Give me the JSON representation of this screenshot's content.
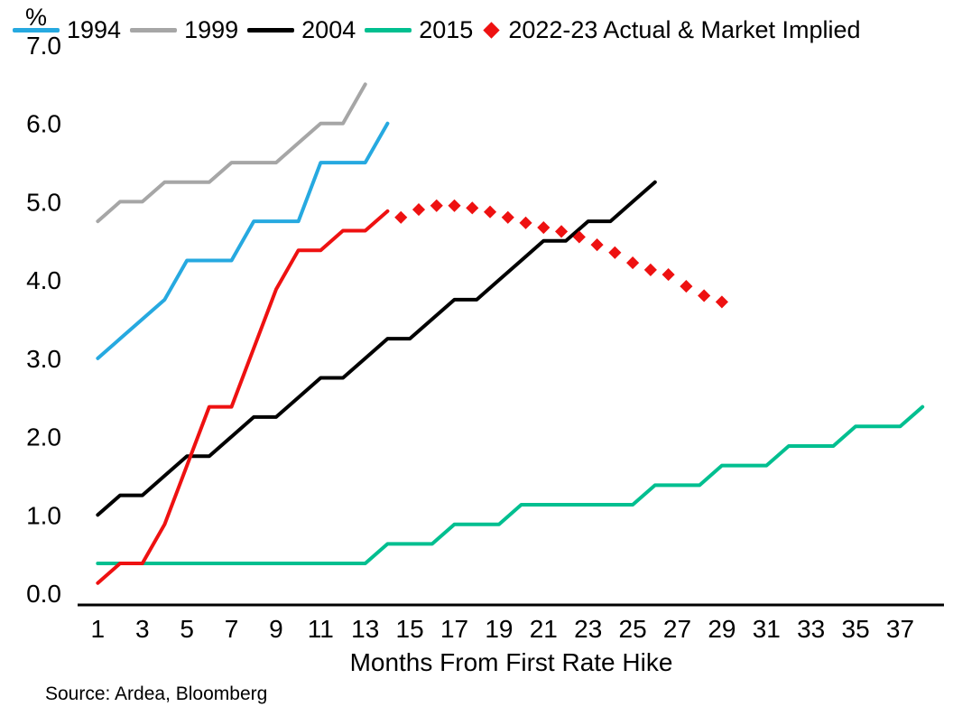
{
  "legend": {
    "items": [
      {
        "label": "1994",
        "color": "#26a9e0",
        "marker": "line"
      },
      {
        "label": "1999",
        "color": "#a6a6a6",
        "marker": "line"
      },
      {
        "label": "2004",
        "color": "#000000",
        "marker": "line"
      },
      {
        "label": "2015",
        "color": "#00bf90",
        "marker": "line"
      },
      {
        "label": "2022-23 Actual & Market Implied",
        "color": "#ee1111",
        "marker": "diamond"
      }
    ]
  },
  "chart_data": {
    "type": "line",
    "title": "",
    "xlabel": "Months From First Rate Hike",
    "ylabel": "%",
    "xlim": [
      0.5,
      38.6
    ],
    "ylim": [
      0,
      7
    ],
    "grid": false,
    "legend_position": "top",
    "xticks": [
      1,
      3,
      5,
      7,
      9,
      11,
      13,
      15,
      17,
      19,
      21,
      23,
      25,
      27,
      29,
      31,
      33,
      35,
      37
    ],
    "yticks": [
      "0.0",
      "1.0",
      "2.0",
      "3.0",
      "4.0",
      "5.0",
      "6.0",
      "7.0"
    ],
    "series": [
      {
        "name": "1994",
        "color": "#26a9e0",
        "style": "line",
        "x_start": 1,
        "y": [
          3.0,
          3.25,
          3.5,
          3.75,
          4.25,
          4.25,
          4.25,
          4.75,
          4.75,
          4.75,
          5.5,
          5.5,
          5.5,
          6.0
        ]
      },
      {
        "name": "1999",
        "color": "#a6a6a6",
        "style": "line",
        "x_start": 1,
        "y": [
          4.75,
          5.0,
          5.0,
          5.25,
          5.25,
          5.25,
          5.5,
          5.5,
          5.5,
          5.75,
          6.0,
          6.0,
          6.5
        ]
      },
      {
        "name": "2004",
        "color": "#000000",
        "style": "line",
        "x_start": 1,
        "y": [
          1.0,
          1.25,
          1.25,
          1.5,
          1.75,
          1.75,
          2.0,
          2.25,
          2.25,
          2.5,
          2.75,
          2.75,
          3.0,
          3.25,
          3.25,
          3.5,
          3.75,
          3.75,
          4.0,
          4.25,
          4.5,
          4.5,
          4.75,
          4.75,
          5.0,
          5.25
        ]
      },
      {
        "name": "2015",
        "color": "#00bf90",
        "style": "line",
        "x_start": 1,
        "y": [
          0.38,
          0.38,
          0.38,
          0.38,
          0.38,
          0.38,
          0.38,
          0.38,
          0.38,
          0.38,
          0.38,
          0.38,
          0.38,
          0.63,
          0.63,
          0.63,
          0.88,
          0.88,
          0.88,
          1.13,
          1.13,
          1.13,
          1.13,
          1.13,
          1.13,
          1.38,
          1.38,
          1.38,
          1.63,
          1.63,
          1.63,
          1.88,
          1.88,
          1.88,
          2.13,
          2.13,
          2.13,
          2.38
        ]
      },
      {
        "name": "2022-23 Actual",
        "color": "#ee1111",
        "style": "line",
        "x_start": 1,
        "y": [
          0.13,
          0.38,
          0.38,
          0.88,
          1.63,
          2.38,
          2.38,
          3.13,
          3.88,
          4.38,
          4.38,
          4.63,
          4.63,
          4.88
        ]
      },
      {
        "name": "2022-23 Market Implied",
        "color": "#ee1111",
        "style": "diamond",
        "x": [
          14.6,
          15.4,
          16.2,
          17.0,
          17.8,
          18.6,
          19.4,
          20.2,
          21.0,
          21.8,
          22.6,
          23.4,
          24.2,
          25.0,
          25.8,
          26.6,
          27.4,
          28.2,
          29.0
        ],
        "y": [
          4.8,
          4.9,
          4.95,
          4.95,
          4.92,
          4.87,
          4.8,
          4.73,
          4.67,
          4.62,
          4.55,
          4.45,
          4.35,
          4.22,
          4.13,
          4.07,
          3.92,
          3.8,
          3.72
        ]
      }
    ]
  },
  "footer": {
    "source": "Source: Ardea, Bloomberg"
  }
}
